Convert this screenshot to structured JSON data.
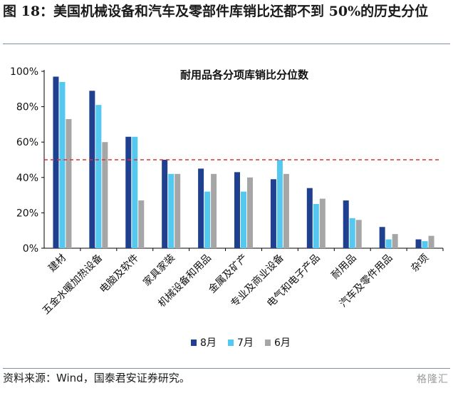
{
  "figure_title": "图 18：美国机械设备和汽车及零部件库销比还都不到 50%的历史分位",
  "source_note": "资料来源：Wind，国泰君安证券研究。",
  "watermark_text": "格隆汇",
  "chart_data": {
    "type": "bar",
    "title": "耐用品各分项库销比分位数",
    "categories": [
      "建材",
      "五金水暖加热设备",
      "电脑及软件",
      "家具家装",
      "机械设备和用品",
      "金属及矿产",
      "专业及商业设备",
      "电气和电子产品",
      "耐用品",
      "汽车及零件用品",
      "杂项"
    ],
    "series": [
      {
        "name": "8月",
        "color": "#1f3f8f",
        "values": [
          97,
          89,
          63,
          50,
          45,
          43,
          39,
          34,
          27,
          12,
          5
        ]
      },
      {
        "name": "7月",
        "color": "#55c8f0",
        "values": [
          94,
          81,
          63,
          42,
          32,
          32,
          50,
          25,
          17,
          5,
          4
        ]
      },
      {
        "name": "6月",
        "color": "#a6a6a6",
        "values": [
          73,
          60,
          27,
          42,
          42,
          40,
          42,
          28,
          16,
          8,
          7
        ]
      }
    ],
    "reference_line": {
      "value": 50,
      "style": "dashed",
      "color": "#e0302a"
    },
    "ylim": [
      0,
      100
    ],
    "yticks": [
      "0%",
      "20%",
      "40%",
      "60%",
      "80%",
      "100%"
    ],
    "xlabel": "",
    "ylabel": "",
    "legend_position": "bottom-center"
  }
}
